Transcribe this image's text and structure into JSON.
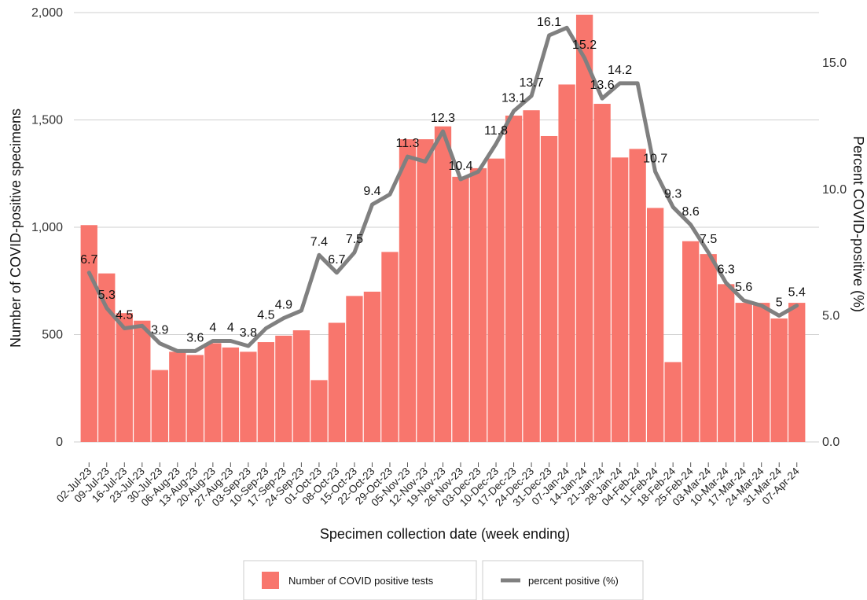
{
  "chart_data": {
    "type": "bar",
    "xlabel": "Specimen collection date (week ending)",
    "ylabel": "Number of COVID-positive specimens",
    "y2label": "Percent COVID-positive (%)",
    "ylim": [
      0,
      2000
    ],
    "y2lim": [
      0,
      17
    ],
    "yticks": [
      "0",
      "500",
      "1,000",
      "1,500",
      "2,000"
    ],
    "yticks_values": [
      0,
      500,
      1000,
      1500,
      2000
    ],
    "y2ticks": [
      "0.0",
      "5.0",
      "10.0",
      "15.0"
    ],
    "y2ticks_values": [
      0,
      5,
      10,
      15
    ],
    "grid": "horizontal",
    "legend_position": "bottom",
    "categories": [
      "02-Jul-23",
      "09-Jul-23",
      "16-Jul-23",
      "23-Jul-23",
      "30-Jul-23",
      "06-Aug-23",
      "13-Aug-23",
      "20-Aug-23",
      "27-Aug-23",
      "03-Sep-23",
      "10-Sep-23",
      "17-Sep-23",
      "24-Sep-23",
      "01-Oct-23",
      "08-Oct-23",
      "15-Oct-23",
      "22-Oct-23",
      "29-Oct-23",
      "05-Nov-23",
      "12-Nov-23",
      "19-Nov-23",
      "26-Nov-23",
      "03-Dec-23",
      "10-Dec-23",
      "17-Dec-23",
      "24-Dec-23",
      "31-Dec-23",
      "07-Jan-24",
      "14-Jan-24",
      "21-Jan-24",
      "28-Jan-24",
      "04-Feb-24",
      "11-Feb-24",
      "18-Feb-24",
      "25-Feb-24",
      "03-Mar-24",
      "10-Mar-24",
      "17-Mar-24",
      "24-Mar-24",
      "31-Mar-24",
      "07-Apr-24"
    ],
    "series": [
      {
        "name": "Number of COVID positive tests",
        "type": "bar",
        "axis": "left",
        "color": "#F8766D",
        "values": [
          1010,
          785,
          600,
          565,
          335,
          420,
          405,
          460,
          440,
          420,
          465,
          495,
          520,
          288,
          555,
          680,
          700,
          885,
          1410,
          1410,
          1470,
          1235,
          1275,
          1320,
          1520,
          1545,
          1425,
          1665,
          1990,
          1575,
          1325,
          1365,
          1090,
          372,
          935,
          875,
          735,
          648,
          648,
          575,
          648
        ]
      },
      {
        "name": "percent positive (%)",
        "type": "line",
        "axis": "right",
        "color": "#808080",
        "values": [
          6.7,
          5.3,
          4.5,
          4.6,
          3.9,
          3.6,
          3.6,
          4.0,
          4.0,
          3.8,
          4.5,
          4.9,
          5.2,
          7.4,
          6.7,
          7.5,
          9.4,
          9.8,
          11.3,
          11.1,
          12.3,
          10.4,
          10.7,
          11.8,
          13.1,
          13.7,
          16.1,
          16.4,
          15.2,
          13.6,
          14.2,
          14.2,
          10.7,
          9.3,
          8.6,
          7.5,
          6.3,
          5.6,
          5.4,
          5.0,
          5.4
        ]
      }
    ],
    "data_labels": [
      {
        "i": 0,
        "text": "6.7"
      },
      {
        "i": 1,
        "text": "5.3"
      },
      {
        "i": 2,
        "text": "4.5"
      },
      {
        "i": 4,
        "text": "3.9"
      },
      {
        "i": 6,
        "text": "3.6"
      },
      {
        "i": 7,
        "text": "4"
      },
      {
        "i": 8,
        "text": "4"
      },
      {
        "i": 9,
        "text": "3.8"
      },
      {
        "i": 10,
        "text": "4.5"
      },
      {
        "i": 11,
        "text": "4.9"
      },
      {
        "i": 13,
        "text": "7.4"
      },
      {
        "i": 14,
        "text": "6.7"
      },
      {
        "i": 15,
        "text": "7.5"
      },
      {
        "i": 16,
        "text": "9.4"
      },
      {
        "i": 18,
        "text": "11.3"
      },
      {
        "i": 20,
        "text": "12.3"
      },
      {
        "i": 21,
        "text": "10.4"
      },
      {
        "i": 23,
        "text": "11.8"
      },
      {
        "i": 24,
        "text": "13.1"
      },
      {
        "i": 25,
        "text": "13.7"
      },
      {
        "i": 26,
        "text": "16.1"
      },
      {
        "i": 28,
        "text": "15.2"
      },
      {
        "i": 29,
        "text": "13.6"
      },
      {
        "i": 30,
        "text": "14.2"
      },
      {
        "i": 32,
        "text": "10.7"
      },
      {
        "i": 33,
        "text": "9.3"
      },
      {
        "i": 34,
        "text": "8.6"
      },
      {
        "i": 35,
        "text": "7.5"
      },
      {
        "i": 36,
        "text": "6.3"
      },
      {
        "i": 37,
        "text": "5.6"
      },
      {
        "i": 39,
        "text": "5"
      },
      {
        "i": 40,
        "text": "5.4"
      }
    ]
  }
}
